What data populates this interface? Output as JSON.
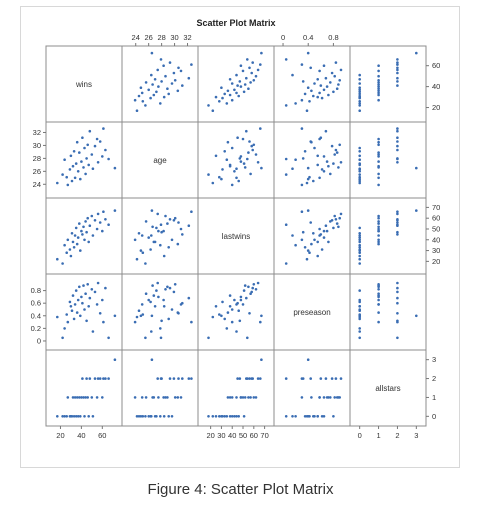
{
  "caption": "Figure 4: Scatter Plot Matrix",
  "colors": {
    "marker": "#3a6db3",
    "frame": "#8c8c8c"
  },
  "chart_data": {
    "type": "scatter",
    "title": "Scatter Plot Matrix",
    "variables": [
      "wins",
      "age",
      "lastwins",
      "preseason",
      "allstars"
    ],
    "ranges": {
      "wins": [
        10,
        75
      ],
      "age": [
        22.5,
        33
      ],
      "lastwins": [
        12,
        75
      ],
      "preseason": [
        -0.08,
        1.0
      ],
      "allstars": [
        -0.3,
        3.3
      ]
    },
    "ticks": {
      "wins": [
        20,
        40,
        60
      ],
      "age": [
        24,
        26,
        28,
        30,
        32
      ],
      "lastwins": [
        20,
        30,
        40,
        50,
        60,
        70
      ],
      "preseason": [
        0.0,
        0.2,
        0.4,
        0.6,
        0.8
      ],
      "preseason_top": [
        0.0,
        0.4,
        0.8
      ],
      "allstars": [
        0,
        1,
        2,
        3
      ]
    },
    "grid": false,
    "legend": "none",
    "observations": [
      {
        "wins": 17,
        "age": 24.2,
        "lastwins": 22,
        "preseason": 0.38,
        "allstars": 0
      },
      {
        "wins": 22,
        "age": 25.5,
        "lastwins": 18,
        "preseason": 0.05,
        "allstars": 0
      },
      {
        "wins": 24,
        "age": 27.8,
        "lastwins": 35,
        "preseason": 0.2,
        "allstars": 0
      },
      {
        "wins": 26,
        "age": 25.1,
        "lastwins": 28,
        "preseason": 0.42,
        "allstars": 0
      },
      {
        "wins": 27,
        "age": 23.9,
        "lastwins": 40,
        "preseason": 0.3,
        "allstars": 1
      },
      {
        "wins": 29,
        "age": 26.3,
        "lastwins": 31,
        "preseason": 0.62,
        "allstars": 0
      },
      {
        "wins": 30,
        "age": 28.4,
        "lastwins": 25,
        "preseason": 0.55,
        "allstars": 0
      },
      {
        "wins": 31,
        "age": 24.5,
        "lastwins": 46,
        "preseason": 0.48,
        "allstars": 0
      },
      {
        "wins": 32,
        "age": 26.8,
        "lastwins": 38,
        "preseason": 0.72,
        "allstars": 1
      },
      {
        "wins": 33,
        "age": 29.1,
        "lastwins": 33,
        "preseason": 0.35,
        "allstars": 0
      },
      {
        "wins": 34,
        "age": 25.0,
        "lastwins": 44,
        "preseason": 0.58,
        "allstars": 1
      },
      {
        "wins": 35,
        "age": 27.2,
        "lastwins": 51,
        "preseason": 0.8,
        "allstars": 0
      },
      {
        "wins": 36,
        "age": 30.5,
        "lastwins": 36,
        "preseason": 0.45,
        "allstars": 1
      },
      {
        "wins": 37,
        "age": 26.0,
        "lastwins": 42,
        "preseason": 0.65,
        "allstars": 0
      },
      {
        "wins": 38,
        "age": 28.9,
        "lastwins": 55,
        "preseason": 0.86,
        "allstars": 1
      },
      {
        "wins": 39,
        "age": 24.8,
        "lastwins": 30,
        "preseason": 0.4,
        "allstars": 0
      },
      {
        "wins": 40,
        "age": 27.5,
        "lastwins": 48,
        "preseason": 0.7,
        "allstars": 1
      },
      {
        "wins": 41,
        "age": 31.2,
        "lastwins": 45,
        "preseason": 0.6,
        "allstars": 2
      },
      {
        "wins": 42,
        "age": 26.6,
        "lastwins": 52,
        "preseason": 0.88,
        "allstars": 1
      },
      {
        "wins": 43,
        "age": 29.6,
        "lastwins": 40,
        "preseason": 0.5,
        "allstars": 0
      },
      {
        "wins": 44,
        "age": 25.6,
        "lastwins": 57,
        "preseason": 0.75,
        "allstars": 1
      },
      {
        "wins": 45,
        "age": 28.0,
        "lastwins": 47,
        "preseason": 0.32,
        "allstars": 2
      },
      {
        "wins": 46,
        "age": 30.1,
        "lastwins": 60,
        "preseason": 0.9,
        "allstars": 1
      },
      {
        "wins": 47,
        "age": 27.0,
        "lastwins": 38,
        "preseason": 0.55,
        "allstars": 0
      },
      {
        "wins": 48,
        "age": 32.2,
        "lastwins": 53,
        "preseason": 0.68,
        "allstars": 2
      },
      {
        "wins": 50,
        "age": 28.6,
        "lastwins": 62,
        "preseason": 0.82,
        "allstars": 1
      },
      {
        "wins": 51,
        "age": 26.4,
        "lastwins": 44,
        "preseason": 0.15,
        "allstars": 0
      },
      {
        "wins": 53,
        "age": 29.9,
        "lastwins": 58,
        "preseason": 0.78,
        "allstars": 2
      },
      {
        "wins": 55,
        "age": 31.0,
        "lastwins": 50,
        "preseason": 0.58,
        "allstars": 1
      },
      {
        "wins": 56,
        "age": 27.4,
        "lastwins": 64,
        "preseason": 0.92,
        "allstars": 2
      },
      {
        "wins": 58,
        "age": 30.6,
        "lastwins": 56,
        "preseason": 0.44,
        "allstars": 2
      },
      {
        "wins": 60,
        "age": 28.3,
        "lastwins": 48,
        "preseason": 0.65,
        "allstars": 1
      },
      {
        "wins": 61,
        "age": 32.6,
        "lastwins": 66,
        "preseason": 0.3,
        "allstars": 2
      },
      {
        "wins": 63,
        "age": 29.3,
        "lastwins": 59,
        "preseason": 0.84,
        "allstars": 2
      },
      {
        "wins": 66,
        "age": 27.9,
        "lastwins": 54,
        "preseason": 0.05,
        "allstars": 2
      },
      {
        "wins": 72,
        "age": 26.5,
        "lastwins": 67,
        "preseason": 0.4,
        "allstars": 3
      }
    ]
  }
}
